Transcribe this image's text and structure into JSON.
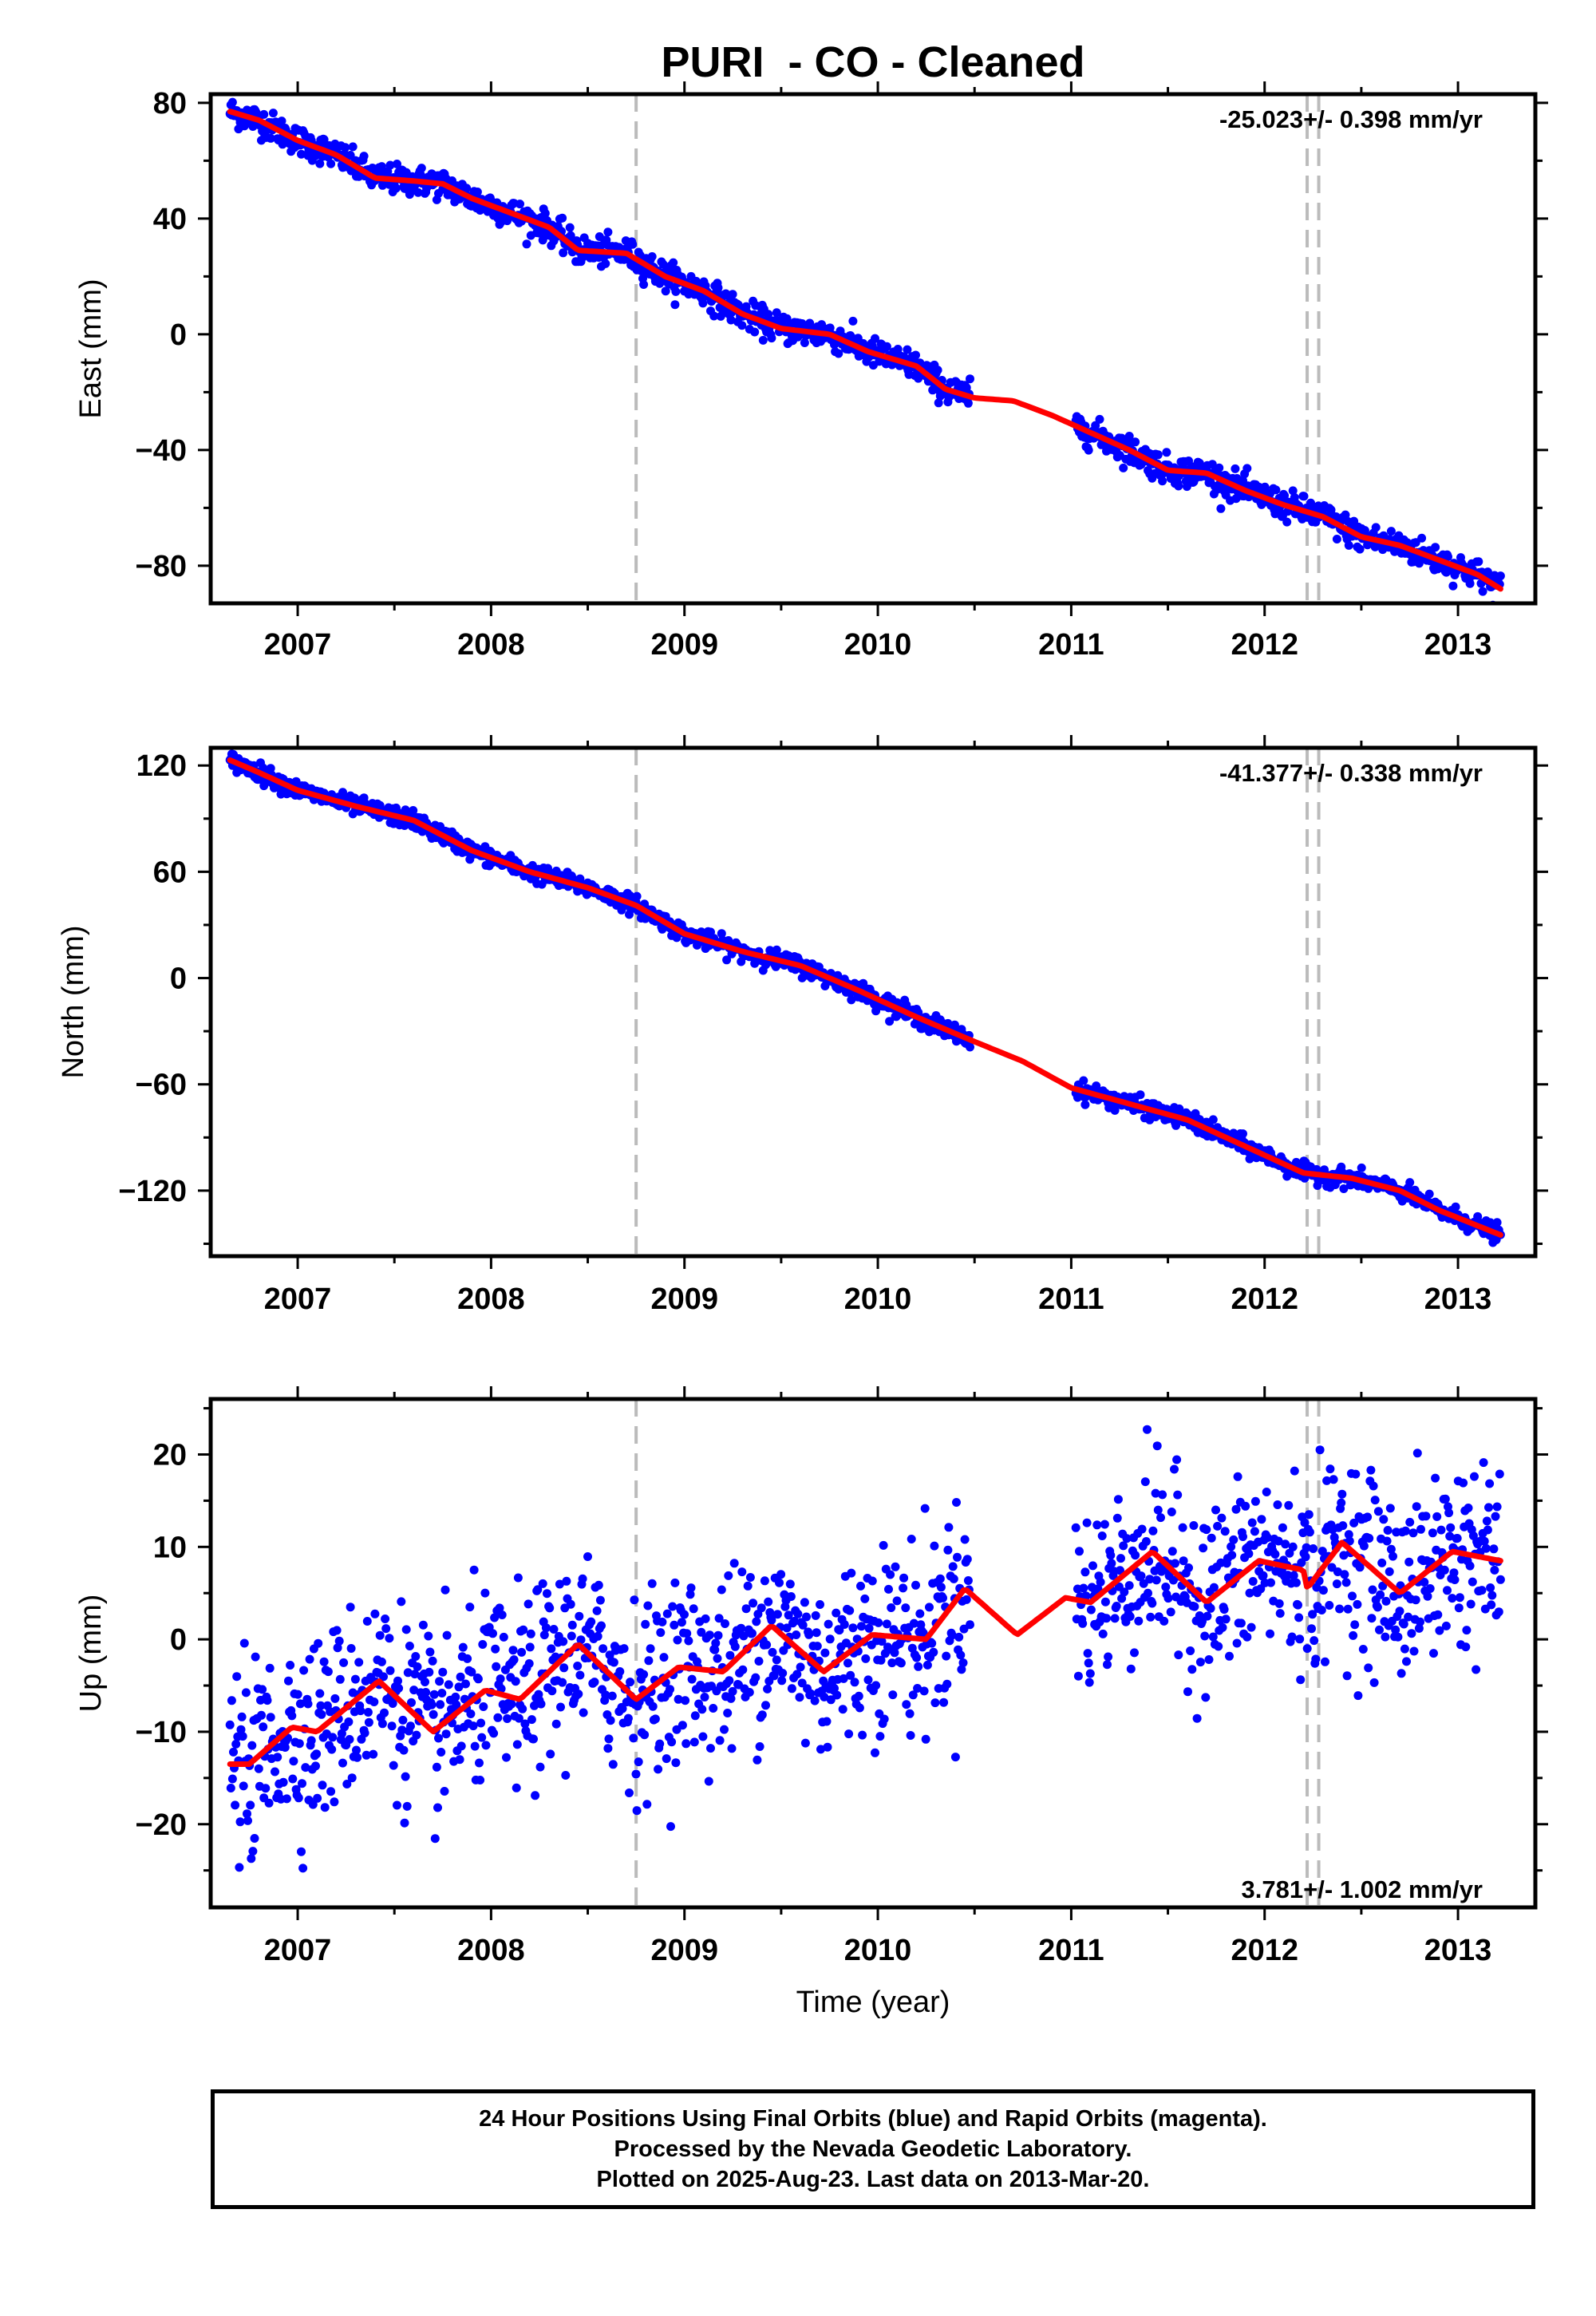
{
  "title": "PURI  - CO - Cleaned",
  "xlabel": "Time (year)",
  "colors": {
    "data": "#0000ff",
    "model": "#ff0000",
    "marker": "#bbbbbb",
    "frame": "#000000"
  },
  "footer": {
    "line1": "24 Hour Positions Using Final Orbits (blue) and Rapid Orbits (magenta).",
    "line2": "Processed by the Nevada Geodetic Laboratory.",
    "line3": "Plotted on 2025-Aug-23. Last data on 2013-Mar-20."
  },
  "chart_data": [
    {
      "type": "scatter",
      "panel": "east",
      "ylabel": "East (mm)",
      "rate_label": "-25.023+/- 0.398 mm/yr",
      "rate_position": "top-right",
      "xlim": [
        2006.55,
        2013.4
      ],
      "ylim": [
        -93,
        83
      ],
      "xticks": [
        2007,
        2008,
        2009,
        2010,
        2011,
        2012,
        2013
      ],
      "yticks": [
        80,
        40,
        0,
        -40,
        -80
      ],
      "ytick_labels": [
        "80",
        "40",
        "0",
        "−40",
        "−80"
      ],
      "event_markers": [
        2008.75,
        2012.22,
        2012.28
      ],
      "data_gap": [
        2010.48,
        2011.02
      ],
      "model_curve": {
        "x": [
          2006.65,
          2006.8,
          2007.0,
          2007.2,
          2007.4,
          2007.6,
          2007.75,
          2007.9,
          2008.1,
          2008.3,
          2008.45,
          2008.7,
          2008.9,
          2009.1,
          2009.3,
          2009.5,
          2009.75,
          2009.95,
          2010.2,
          2010.35,
          2010.5,
          2010.7,
          2010.9,
          2011.1,
          2011.3,
          2011.5,
          2011.7,
          2011.9,
          2012.1,
          2012.3,
          2012.5,
          2012.7,
          2012.9,
          2013.1,
          2013.22
        ],
        "y": [
          77,
          74,
          67,
          62,
          54,
          53,
          52,
          47,
          42,
          37,
          29,
          28,
          20,
          15,
          7,
          2,
          0,
          -6,
          -11,
          -19,
          -22,
          -23,
          -28,
          -34,
          -40,
          -47,
          -48,
          -54,
          -59,
          -63,
          -70,
          -73,
          -78,
          -83,
          -88
        ]
      },
      "scatter_spread": 2.5
    },
    {
      "type": "scatter",
      "panel": "north",
      "ylabel": "North (mm)",
      "rate_label": "-41.377+/- 0.338 mm/yr",
      "rate_position": "top-right",
      "xlim": [
        2006.55,
        2013.4
      ],
      "ylim": [
        -157,
        130
      ],
      "xticks": [
        2007,
        2008,
        2009,
        2010,
        2011,
        2012,
        2013
      ],
      "yticks": [
        120,
        60,
        0,
        -60,
        -120
      ],
      "ytick_labels": [
        "120",
        "60",
        "0",
        "−60",
        "−120"
      ],
      "event_markers": [
        2008.75,
        2012.22,
        2012.28
      ],
      "data_gap": [
        2010.48,
        2011.02
      ],
      "model_curve": {
        "x": [
          2006.65,
          2006.8,
          2007.0,
          2007.3,
          2007.6,
          2007.9,
          2008.2,
          2008.5,
          2008.75,
          2009.0,
          2009.3,
          2009.6,
          2009.9,
          2010.2,
          2010.48,
          2010.75,
          2011.0,
          2011.3,
          2011.6,
          2011.9,
          2012.2,
          2012.45,
          2012.7,
          2012.9,
          2013.22
        ],
        "y": [
          123,
          116,
          106,
          97,
          89,
          72,
          60,
          51,
          41,
          25,
          15,
          7,
          -7,
          -22,
          -35,
          -47,
          -62,
          -71,
          -80,
          -95,
          -110,
          -113,
          -120,
          -131,
          -145
        ]
      },
      "scatter_spread": 2.5
    },
    {
      "type": "scatter",
      "panel": "up",
      "ylabel": "Up (mm)",
      "rate_label": "3.781+/- 1.002 mm/yr",
      "rate_position": "bottom-right",
      "xlim": [
        2006.55,
        2013.4
      ],
      "ylim": [
        -29,
        26
      ],
      "xticks": [
        2007,
        2008,
        2009,
        2010,
        2011,
        2012,
        2013
      ],
      "yticks": [
        20,
        10,
        0,
        -10,
        -20
      ],
      "ytick_labels": [
        "20",
        "10",
        "0",
        "−10",
        "−20"
      ],
      "event_markers": [
        2008.75,
        2012.22,
        2012.28
      ],
      "data_gap": [
        2010.48,
        2011.02
      ],
      "model_curve": {
        "x": [
          2006.65,
          2006.75,
          2006.97,
          2007.1,
          2007.42,
          2007.7,
          2007.97,
          2008.15,
          2008.45,
          2008.75,
          2008.97,
          2009.2,
          2009.45,
          2009.72,
          2009.97,
          2010.25,
          2010.45,
          2010.72,
          2010.97,
          2011.1,
          2011.42,
          2011.7,
          2011.97,
          2012.2,
          2012.22,
          2012.4,
          2012.7,
          2012.97,
          2013.22
        ],
        "y": [
          -13.5,
          -13.5,
          -9.5,
          -10,
          -4.5,
          -10,
          -5.5,
          -6.5,
          -0.5,
          -6.5,
          -3,
          -3.5,
          1.5,
          -3.5,
          0.5,
          0,
          5.5,
          0.5,
          4.5,
          4,
          9.5,
          4,
          8.5,
          7.5,
          5.5,
          10.5,
          5,
          9.5,
          8.5
        ]
      },
      "scatter_spread": 5
    }
  ]
}
